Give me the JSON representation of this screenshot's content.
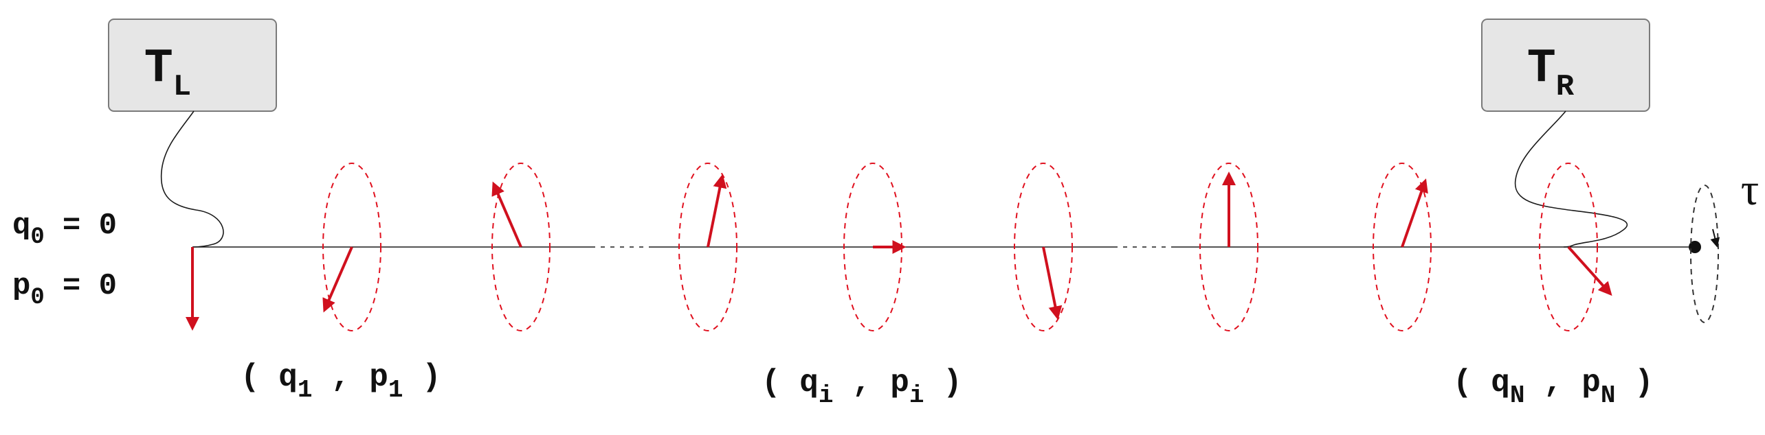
{
  "colors": {
    "line": "#1a1a1a",
    "arrow": "#d0101e",
    "ellipse": "#e0101e",
    "box_fill": "#e6e6e6",
    "box_stroke": "#7a7a7a",
    "ghost_ellipse": "#333333"
  },
  "baths": {
    "left": {
      "base": "T",
      "sub": "L"
    },
    "right": {
      "base": "T",
      "sub": "R"
    }
  },
  "boundary": {
    "q0": {
      "base": "q",
      "sub": "0",
      "rest": "= 0"
    },
    "p0": {
      "base": "p",
      "sub": "0",
      "rest": "= 0"
    }
  },
  "time_label": "τ",
  "site_labels": [
    {
      "q": "q",
      "qsub": "1",
      "p": "p",
      "psub": "1"
    },
    {
      "q": "q",
      "qsub": "i",
      "p": "p",
      "psub": "i"
    },
    {
      "q": "q",
      "qsub": "N",
      "p": "p",
      "psub": "N"
    }
  ],
  "oscillator_angles_deg": [
    240,
    120,
    75,
    0,
    285,
    90,
    65,
    320
  ]
}
